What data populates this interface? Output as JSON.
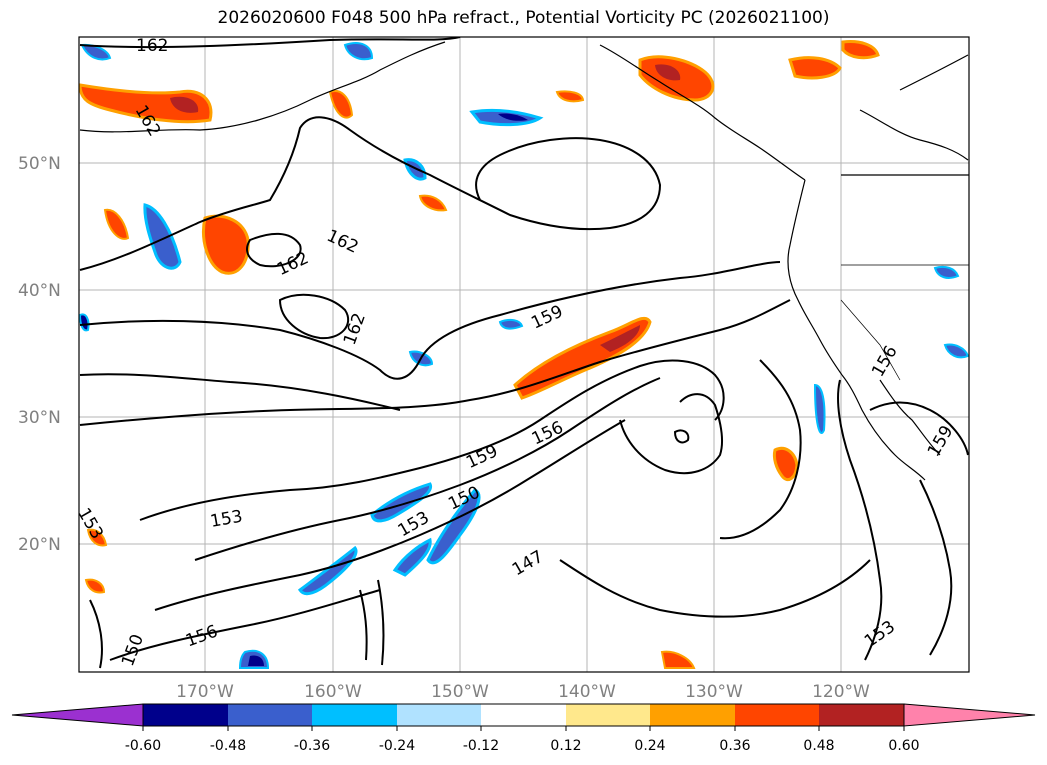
{
  "title": "2026020600 F048 500 hPa refract., Potential Vorticity PC (2026021100)",
  "lat_labels": [
    "50°N",
    "40°N",
    "30°N",
    "20°N"
  ],
  "lon_labels": [
    "170°W",
    "160°W",
    "150°W",
    "140°W",
    "130°W",
    "120°W"
  ],
  "contour_labels": [
    "162",
    "162",
    "162",
    "162",
    "162",
    "159",
    "159",
    "159",
    "156",
    "156",
    "156",
    "153",
    "153",
    "153",
    "153",
    "150",
    "150",
    "147"
  ],
  "colorbar": {
    "ticks": [
      "-0.60",
      "-0.48",
      "-0.36",
      "-0.24",
      "-0.12",
      "0.12",
      "0.24",
      "0.36",
      "0.48",
      "0.60"
    ],
    "colors": [
      "#9b30d0",
      "#00008b",
      "#3a5fcd",
      "#00bfff",
      "#b0e2ff",
      "#ffffff",
      "#ffe88c",
      "#ffa000",
      "#ff4500",
      "#b22222",
      "#ff82ab"
    ],
    "extend": "both"
  },
  "contour_color": "#000000",
  "coastline_color": "#000000",
  "grid": true
}
